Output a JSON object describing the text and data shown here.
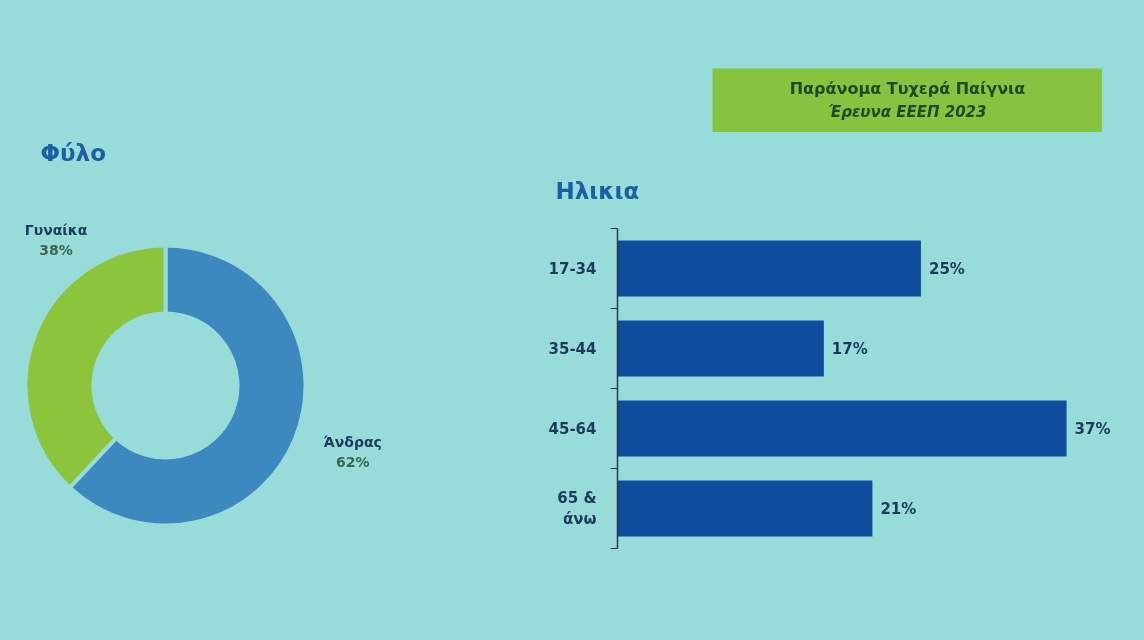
{
  "chart_data": [
    {
      "type": "other",
      "title": "Παράνομα Τυχερά Παίγνια",
      "subtitle": "Έρευνα ΕΕΕΠ 2023"
    },
    {
      "type": "donut",
      "title": "Φύλο",
      "categories": [
        "Άνδρας",
        "Γυναίκα"
      ],
      "values": [
        62,
        38
      ],
      "colors": [
        "#3d88bf",
        "#8cc43c"
      ],
      "value_labels": [
        "62%",
        "38%"
      ]
    },
    {
      "type": "bar",
      "orientation": "horizontal",
      "title": "Ηλικια",
      "categories": [
        "17-34",
        "35-44",
        "45-64",
        "65 & άνω"
      ],
      "values": [
        25,
        17,
        37,
        21
      ],
      "color": "#0f4d9e",
      "value_labels": [
        "25%",
        "17%",
        "37%",
        "21%"
      ]
    }
  ]
}
